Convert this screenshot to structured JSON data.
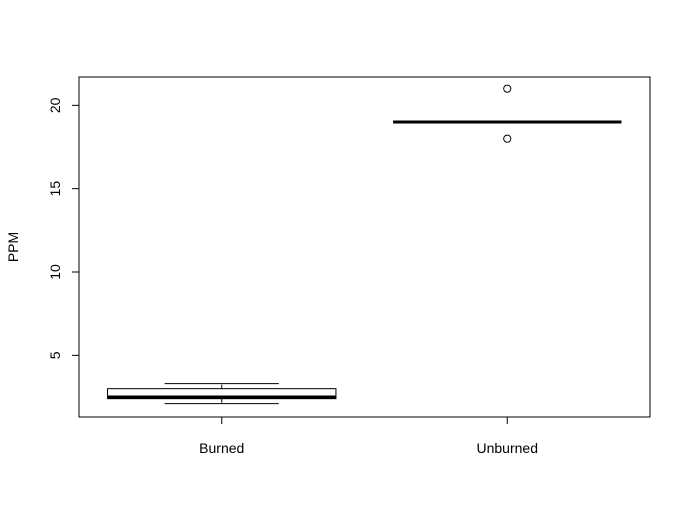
{
  "chart_data": {
    "type": "box",
    "title": "",
    "xlabel": "",
    "ylabel": "PPM",
    "ylim": [
      1.3,
      21.7
    ],
    "yticks": [
      5,
      10,
      15,
      20
    ],
    "categories": [
      "Burned",
      "Unburned"
    ],
    "boxes": [
      {
        "name": "Burned",
        "whisker_low": 2.1,
        "q1": 2.4,
        "median": 2.5,
        "q3": 3.0,
        "whisker_high": 3.3,
        "outliers": []
      },
      {
        "name": "Unburned",
        "whisker_low": 19.0,
        "q1": 19.0,
        "median": 19.0,
        "q3": 19.0,
        "whisker_high": 19.0,
        "outliers": [
          18,
          21
        ]
      }
    ],
    "grid": false,
    "legend": "none"
  }
}
